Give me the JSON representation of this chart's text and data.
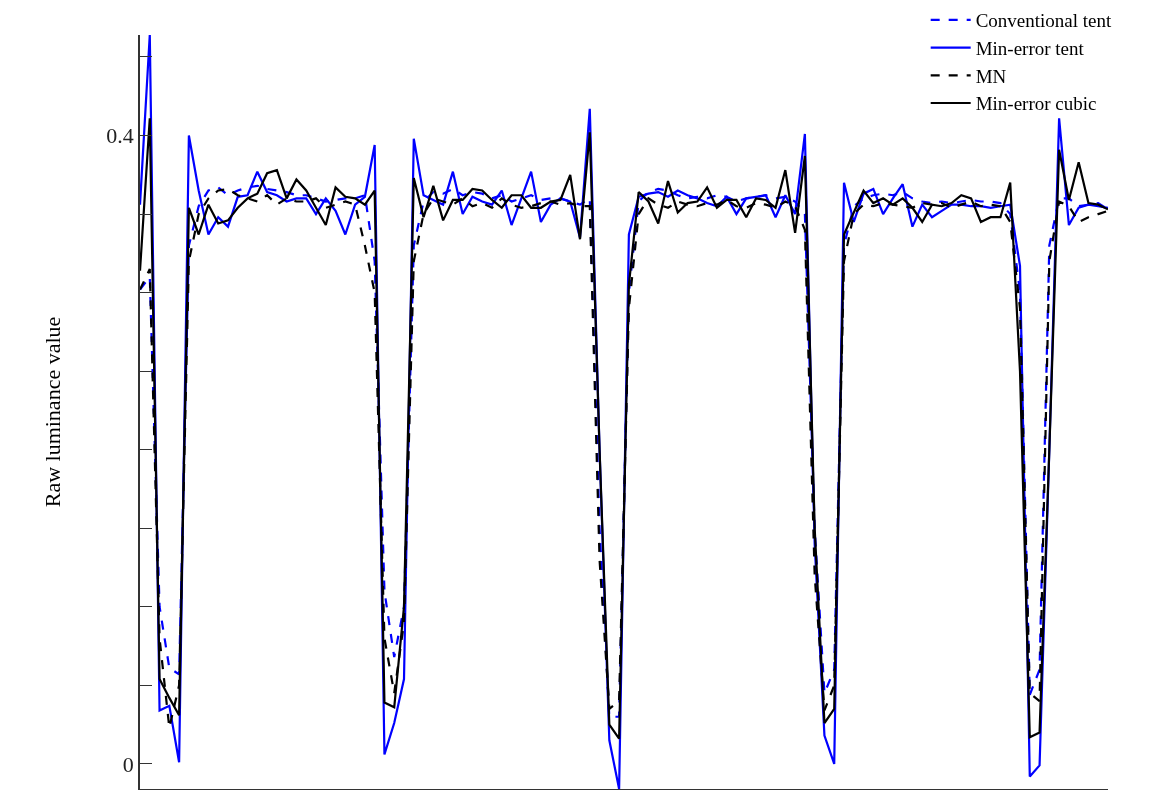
{
  "chart_data": {
    "type": "line",
    "ylabel": "Raw luminance value",
    "categories": [
      null,
      null,
      null,
      null,
      null,
      null,
      null,
      null,
      null,
      null,
      null,
      null,
      null,
      null,
      null,
      null,
      null,
      null,
      null,
      null,
      null,
      null,
      null,
      null,
      null,
      null,
      null,
      null,
      null,
      null,
      null,
      null,
      null,
      null,
      null,
      null,
      null,
      null,
      null,
      null,
      null,
      null,
      null,
      null,
      null,
      null,
      null,
      null,
      null,
      null,
      null,
      null,
      null,
      null,
      null,
      null,
      null,
      null,
      null,
      null,
      null,
      null,
      null,
      null,
      null,
      null,
      null,
      null,
      null,
      null,
      null,
      null,
      null,
      null,
      null,
      null,
      null,
      null,
      null,
      null,
      null,
      null,
      null,
      null,
      null,
      null,
      null,
      null,
      null,
      null,
      null,
      null,
      null,
      null,
      null,
      null,
      null,
      null,
      null,
      null
    ],
    "ylim": [
      -0.016,
      0.464
    ],
    "yticks": [
      0,
      {
        "value": 0.05,
        "label": null
      },
      {
        "value": 0.1,
        "label": null
      },
      {
        "value": 0.15,
        "label": null
      },
      {
        "value": 0.2,
        "label": null
      },
      {
        "value": 0.25,
        "label": null
      },
      {
        "value": 0.3,
        "label": null
      },
      {
        "value": 0.35,
        "label": null
      },
      0.4,
      {
        "value": 0.45,
        "label": null
      }
    ],
    "tick_labels": "y",
    "legend": "top right",
    "marker": "none",
    "series": [
      {
        "name": "Conventional tent",
        "color": "#0000ff",
        "line_style": "dashed",
        "values": [
          0.302,
          0.31,
          0.1,
          0.061,
          0.057,
          0.33,
          0.355,
          0.365,
          0.367,
          0.362,
          0.365,
          0.367,
          0.368,
          0.366,
          0.365,
          0.364,
          0.362,
          0.362,
          0.36,
          0.358,
          0.359,
          0.36,
          0.36,
          0.362,
          0.32,
          0.11,
          0.068,
          0.1,
          0.33,
          0.358,
          0.364,
          0.363,
          0.366,
          0.362,
          0.364,
          0.363,
          0.36,
          0.362,
          0.358,
          0.36,
          0.362,
          0.359,
          0.36,
          0.36,
          0.358,
          0.356,
          0.36,
          0.15,
          0.03,
          0.03,
          0.3,
          0.358,
          0.364,
          0.366,
          0.365,
          0.362,
          0.36,
          0.361,
          0.36,
          0.362,
          0.361,
          0.358,
          0.36,
          0.361,
          0.362,
          0.36,
          0.361,
          0.358,
          0.35,
          0.15,
          0.045,
          0.06,
          0.33,
          0.355,
          0.36,
          0.362,
          0.363,
          0.362,
          0.364,
          0.36,
          0.358,
          0.357,
          0.358,
          0.357,
          0.358,
          0.359,
          0.358,
          0.358,
          0.357,
          0.35,
          0.3,
          0.044,
          0.06,
          0.33,
          0.36,
          0.36,
          0.355,
          0.356,
          0.357,
          0.353
        ]
      },
      {
        "name": "Min-error tent",
        "color": "#0000ff",
        "line_style": "solid",
        "values": [
          0.356,
          0.464,
          0.034,
          0.037,
          0.001,
          0.4,
          0.365,
          0.337,
          0.348,
          0.342,
          0.361,
          0.362,
          0.377,
          0.364,
          0.362,
          0.358,
          0.36,
          0.36,
          0.35,
          0.36,
          0.352,
          0.337,
          0.356,
          0.361,
          0.394,
          0.006,
          0.026,
          0.054,
          0.398,
          0.362,
          0.359,
          0.356,
          0.377,
          0.35,
          0.361,
          0.358,
          0.356,
          0.365,
          0.343,
          0.36,
          0.377,
          0.345,
          0.356,
          0.36,
          0.358,
          0.335,
          0.417,
          0.2,
          0.015,
          -0.016,
          0.337,
          0.361,
          0.363,
          0.364,
          0.361,
          0.365,
          0.362,
          0.36,
          0.357,
          0.355,
          0.361,
          0.35,
          0.36,
          0.361,
          0.362,
          0.348,
          0.362,
          0.35,
          0.401,
          0.14,
          0.018,
          0.0,
          0.37,
          0.345,
          0.363,
          0.366,
          0.35,
          0.36,
          0.369,
          0.342,
          0.356,
          0.348,
          0.352,
          0.356,
          0.356,
          0.355,
          0.355,
          0.354,
          0.355,
          0.356,
          0.317,
          -0.008,
          -0.001,
          0.2,
          0.411,
          0.343,
          0.354,
          0.356,
          0.355,
          0.354
        ]
      },
      {
        "name": "MN",
        "color": "#000000",
        "line_style": "dashed",
        "values": [
          0.302,
          0.315,
          0.08,
          0.023,
          0.05,
          0.32,
          0.35,
          0.36,
          0.365,
          0.366,
          0.362,
          0.36,
          0.358,
          0.362,
          0.356,
          0.36,
          0.358,
          0.358,
          0.36,
          0.354,
          0.356,
          0.358,
          0.356,
          0.33,
          0.3,
          0.08,
          0.045,
          0.09,
          0.32,
          0.35,
          0.36,
          0.358,
          0.356,
          0.36,
          0.355,
          0.357,
          0.354,
          0.36,
          0.356,
          0.354,
          0.355,
          0.357,
          0.358,
          0.356,
          0.357,
          0.355,
          0.355,
          0.13,
          0.035,
          0.04,
          0.29,
          0.35,
          0.36,
          0.356,
          0.354,
          0.358,
          0.356,
          0.355,
          0.357,
          0.356,
          0.359,
          0.355,
          0.354,
          0.357,
          0.356,
          0.354,
          0.358,
          0.355,
          0.34,
          0.12,
          0.034,
          0.05,
          0.32,
          0.35,
          0.356,
          0.355,
          0.357,
          0.356,
          0.355,
          0.354,
          0.357,
          0.356,
          0.357,
          0.354,
          0.356,
          0.358,
          0.355,
          0.356,
          0.355,
          0.345,
          0.29,
          0.045,
          0.04,
          0.32,
          0.358,
          0.355,
          0.345,
          0.348,
          0.35,
          0.352
        ]
      },
      {
        "name": "Min-error cubic",
        "color": "#000000",
        "line_style": "solid",
        "values": [
          0.314,
          0.411,
          0.054,
          0.042,
          0.031,
          0.354,
          0.337,
          0.356,
          0.344,
          0.346,
          0.354,
          0.36,
          0.363,
          0.376,
          0.378,
          0.36,
          0.372,
          0.365,
          0.354,
          0.343,
          0.367,
          0.361,
          0.36,
          0.356,
          0.365,
          0.039,
          0.036,
          0.1,
          0.373,
          0.348,
          0.368,
          0.346,
          0.359,
          0.359,
          0.366,
          0.365,
          0.359,
          0.354,
          0.362,
          0.362,
          0.354,
          0.354,
          0.358,
          0.359,
          0.375,
          0.334,
          0.402,
          0.2,
          0.025,
          0.016,
          0.305,
          0.364,
          0.358,
          0.344,
          0.371,
          0.351,
          0.357,
          0.358,
          0.367,
          0.354,
          0.359,
          0.359,
          0.348,
          0.36,
          0.359,
          0.354,
          0.378,
          0.338,
          0.387,
          0.15,
          0.026,
          0.035,
          0.337,
          0.351,
          0.365,
          0.357,
          0.36,
          0.356,
          0.36,
          0.354,
          0.345,
          0.356,
          0.355,
          0.357,
          0.362,
          0.36,
          0.345,
          0.348,
          0.348,
          0.37,
          0.25,
          0.017,
          0.02,
          0.2,
          0.391,
          0.359,
          0.383,
          0.357,
          0.356,
          0.353
        ]
      }
    ]
  }
}
